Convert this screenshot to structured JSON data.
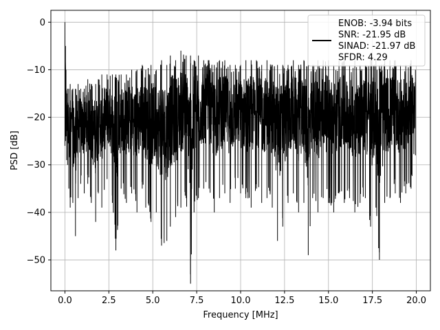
{
  "chart_data": {
    "type": "line",
    "title": "",
    "xlabel": "Frequency [MHz]",
    "ylabel": "PSD [dB]",
    "xlim": [
      -0.8,
      20.8
    ],
    "ylim": [
      -56.5,
      2.5
    ],
    "xticks": [
      0.0,
      2.5,
      5.0,
      7.5,
      10.0,
      12.5,
      15.0,
      17.5,
      20.0
    ],
    "xtick_labels": [
      "0.0",
      "2.5",
      "5.0",
      "7.5",
      "10.0",
      "12.5",
      "15.0",
      "17.5",
      "20.0"
    ],
    "yticks": [
      0,
      -10,
      -20,
      -30,
      -40,
      -50
    ],
    "ytick_labels": [
      "0",
      "−10",
      "−20",
      "−30",
      "−40",
      "−50"
    ],
    "grid": true,
    "legend": {
      "placement": "upper-right",
      "lines": [
        "ENOB: -3.94 bits",
        "SNR: -21.95 dB",
        "SINAD: -21.97 dB",
        "SFDR: 4.29"
      ]
    },
    "series": [
      {
        "color": "#000000",
        "x": [
          0.0,
          0.03,
          0.06,
          0.1,
          0.15,
          0.22,
          0.3,
          0.45,
          0.6,
          0.75,
          0.9,
          1.1,
          1.3,
          1.5,
          1.75,
          1.9,
          2.1,
          2.4,
          2.7,
          2.9,
          3.2,
          3.5,
          3.8,
          4.1,
          4.4,
          4.6,
          4.9,
          5.2,
          5.5,
          5.8,
          6.0,
          6.3,
          6.6,
          6.9,
          7.15,
          7.35,
          7.6,
          7.9,
          8.2,
          8.5,
          8.8,
          9.1,
          9.4,
          9.7,
          10.0,
          10.3,
          10.6,
          10.9,
          11.2,
          11.5,
          11.8,
          12.1,
          12.4,
          12.7,
          13.0,
          13.3,
          13.6,
          13.85,
          14.1,
          14.4,
          14.7,
          15.0,
          15.3,
          15.6,
          15.9,
          16.2,
          16.5,
          16.8,
          17.1,
          17.4,
          17.7,
          17.9,
          18.2,
          18.5,
          18.8,
          19.1,
          19.4,
          19.7,
          19.95
        ],
        "upper": [
          0,
          -5,
          -10,
          -15,
          -14,
          -14,
          -13,
          -14,
          -14,
          -13,
          -14,
          -14,
          -12,
          -13,
          -13,
          -12,
          -11,
          -11,
          -11,
          -11,
          -11,
          -11,
          -10,
          -10,
          -9,
          -10,
          -9,
          -10,
          -8,
          -9,
          -7,
          -8,
          -6,
          -7,
          -7,
          -8,
          -7,
          -8,
          -8,
          -9,
          -8,
          -8,
          -9,
          -9,
          -9,
          -8,
          -8,
          -8,
          -9,
          -8,
          -9,
          -9,
          -9,
          -9,
          -8,
          -9,
          -8,
          -9,
          -9,
          -8,
          -8,
          -8,
          -9,
          -8,
          -8,
          -9,
          -8,
          -9,
          -9,
          -8,
          -8,
          -9,
          -8,
          -8,
          -8,
          -9,
          -9,
          -8,
          -10
        ],
        "lower": [
          -26,
          -25,
          -24,
          -29,
          -30,
          -35,
          -39,
          -38,
          -45,
          -37,
          -34,
          -36,
          -34,
          -38,
          -42,
          -36,
          -39,
          -33,
          -38,
          -48,
          -35,
          -38,
          -36,
          -40,
          -35,
          -39,
          -42,
          -40,
          -47,
          -46,
          -43,
          -41,
          -39,
          -37,
          -55,
          -40,
          -37,
          -35,
          -35,
          -40,
          -37,
          -36,
          -38,
          -35,
          -36,
          -37,
          -39,
          -35,
          -38,
          -37,
          -39,
          -46,
          -43,
          -38,
          -36,
          -40,
          -38,
          -49,
          -37,
          -40,
          -37,
          -38,
          -40,
          -36,
          -38,
          -37,
          -40,
          -38,
          -37,
          -43,
          -39,
          -50,
          -38,
          -37,
          -36,
          -38,
          -36,
          -35,
          -28
        ]
      }
    ]
  }
}
